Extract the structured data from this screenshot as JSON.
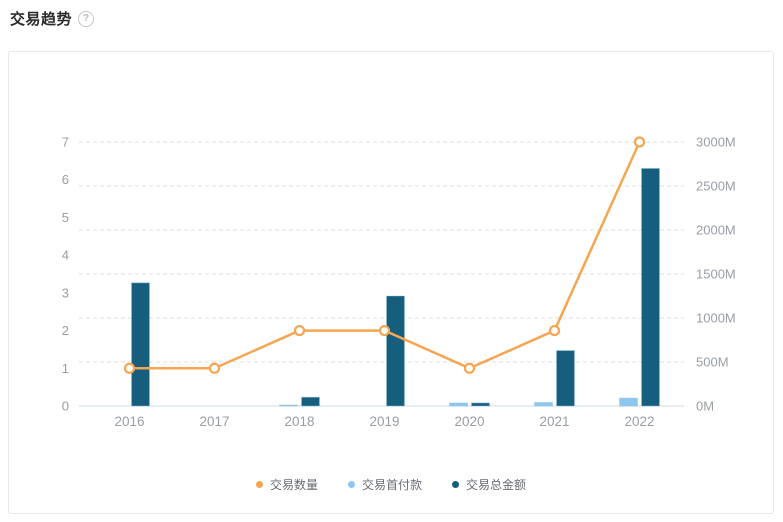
{
  "page": {
    "title": "交易趋势",
    "help_icon_glyph": "?"
  },
  "colors": {
    "title_text": "#2b2b2b",
    "axis_text": "#979ea4",
    "grid_line": "#d9e1e9",
    "axis_line": "#e8edf2",
    "card_border": "#e9e9e9",
    "legend_text": "#676c71",
    "series_count_orange": "#F6A550",
    "series_down_payment_blue": "#8CC7F0",
    "series_total_amount_teal": "#155E7D"
  },
  "chart_data": {
    "type": "combo",
    "title": "交易趋势",
    "categories": [
      "2016",
      "2017",
      "2018",
      "2019",
      "2020",
      "2021",
      "2022"
    ],
    "series": [
      {
        "key": "count",
        "name": "交易数量",
        "type": "line",
        "axis": "left",
        "color": "#F6A550",
        "marker": "hollow-circle",
        "values": [
          1,
          1,
          2,
          2,
          1,
          2,
          7
        ]
      },
      {
        "key": "down-payment",
        "name": "交易首付款",
        "type": "bar",
        "axis": "right",
        "color": "#8CC7F0",
        "values": [
          0,
          0,
          10,
          0,
          35,
          40,
          90
        ]
      },
      {
        "key": "total-amount",
        "name": "交易总金额",
        "type": "bar",
        "axis": "right",
        "color": "#155E7D",
        "values": [
          1400,
          0,
          100,
          1250,
          35,
          630,
          2700
        ]
      }
    ],
    "left_axis": {
      "min": 0,
      "max": 7,
      "tick_values": [
        0,
        1,
        2,
        3,
        4,
        5,
        6,
        7
      ],
      "tick_labels": [
        "0",
        "1",
        "2",
        "3",
        "4",
        "5",
        "6",
        "7"
      ]
    },
    "right_axis": {
      "min": 0,
      "max": 3000,
      "unit": "M",
      "tick_values": [
        0,
        500,
        1000,
        1500,
        2000,
        2500,
        3000
      ],
      "tick_labels": [
        "0M",
        "500M",
        "1000M",
        "1500M",
        "2000M",
        "2500M",
        "3000M"
      ]
    },
    "grid": {
      "horizontal": "dashed",
      "aligned_to": "right_axis",
      "vertical": "none"
    },
    "legend": {
      "position": "bottom",
      "entries": [
        "交易数量",
        "交易首付款",
        "交易总金额"
      ]
    }
  }
}
